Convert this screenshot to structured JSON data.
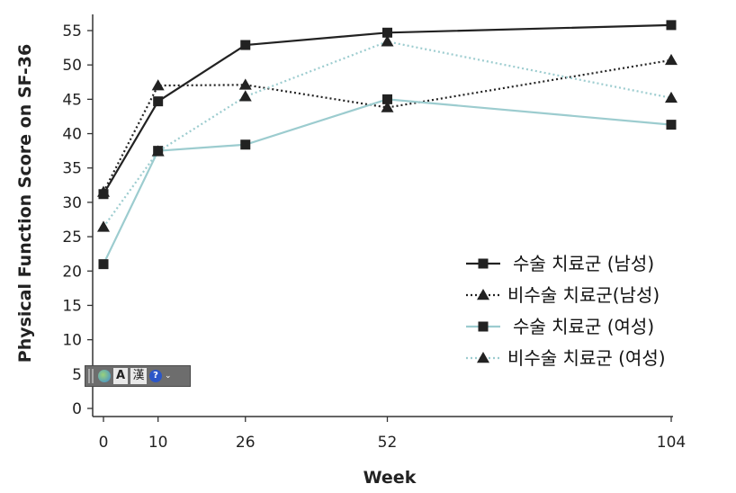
{
  "chart_data": {
    "type": "line",
    "title": "",
    "xlabel": "Week",
    "ylabel": "Physical Function Score on SF-36",
    "x": [
      0,
      10,
      26,
      52,
      104
    ],
    "x_tick_labels": [
      "0",
      "10",
      "26",
      "52",
      "104"
    ],
    "y_ticks": [
      0,
      5,
      10,
      15,
      20,
      25,
      30,
      35,
      40,
      45,
      50,
      55
    ],
    "y_tick_labels": [
      "0",
      "5",
      "10",
      "15",
      "20",
      "25",
      "30",
      "35",
      "40",
      "45",
      "50",
      "55"
    ],
    "xlim": [
      -2,
      104
    ],
    "ylim": [
      -1,
      58
    ],
    "legend_position": "lower-right",
    "series": [
      {
        "name": "수술 치료군 (남성)",
        "values": [
          31.2,
          44.7,
          52.9,
          54.7,
          55.8
        ],
        "color": "#222222",
        "dash": "solid",
        "marker": "square"
      },
      {
        "name": "비수술 치료군(남성)",
        "values": [
          31.5,
          47.0,
          47.1,
          43.8,
          50.7
        ],
        "color": "#222222",
        "dash": "dotted",
        "marker": "triangle"
      },
      {
        "name": "수술 치료군 (여성)",
        "values": [
          21.0,
          37.5,
          38.4,
          45.0,
          41.3
        ],
        "color": "#9ccccf",
        "dash": "solid",
        "marker": "square"
      },
      {
        "name": "비수술 치료군 (여성)",
        "values": [
          26.4,
          37.4,
          45.4,
          53.4,
          45.2
        ],
        "color": "#9ccccf",
        "dash": "dotted",
        "marker": "triangle"
      }
    ]
  },
  "ime_toolbar": {
    "a_label": "A",
    "han_label": "漢",
    "help_label": "?",
    "options_label": "⌄"
  }
}
